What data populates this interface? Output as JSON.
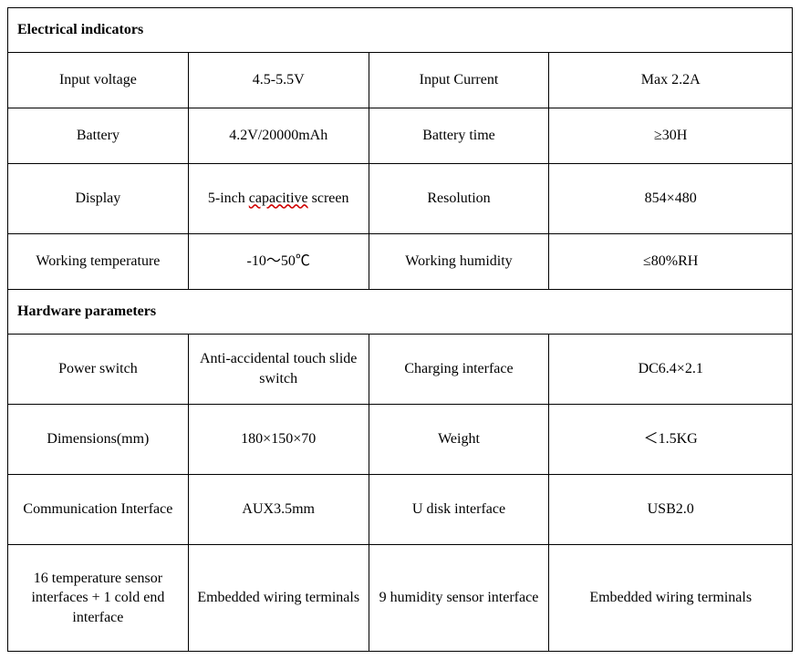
{
  "table": {
    "border_color": "#000000",
    "background_color": "#ffffff",
    "font_family": "Times New Roman",
    "base_fontsize_pt": 12,
    "column_widths_pct": [
      23,
      23,
      23,
      31
    ],
    "sections": [
      {
        "title": "Electrical indicators",
        "rows": [
          {
            "label1": "Input voltage",
            "value1": "4.5-5.5V",
            "label2": "Input Current",
            "value2": "Max 2.2A"
          },
          {
            "label1": "Battery",
            "value1": "4.2V/20000mAh",
            "label2": "Battery time",
            "value2": "≥30H"
          },
          {
            "label1": "Display",
            "value1": "5-inch capacitive screen",
            "label2": "Resolution",
            "value2": "854×480"
          },
          {
            "label1": "Working temperature",
            "value1": "-10～50℃",
            "label2": "Working humidity",
            "value2": "≤80%RH"
          }
        ]
      },
      {
        "title": "Hardware parameters",
        "rows": [
          {
            "label1": "Power switch",
            "value1": "Anti-accidental touch slide switch",
            "label2": "Charging interface",
            "value2": "DC6.4×2.1"
          },
          {
            "label1": "Dimensions(mm)",
            "value1": "180×150×70",
            "label2": "Weight",
            "value2": "＜1.5KG"
          },
          {
            "label1": "Communication Interface",
            "value1": "AUX3.5mm",
            "label2": "U disk interface",
            "value2": "USB2.0"
          },
          {
            "label1": "16 temperature sensor interfaces + 1 cold end interface",
            "value1": "Embedded wiring terminals",
            "label2": "9 humidity sensor interface",
            "value2": "Embedded wiring terminals"
          }
        ]
      }
    ],
    "highlight": {
      "section": 0,
      "row": 2,
      "col": "value1",
      "word": "capacitive",
      "style": "wavy-underline",
      "color": "#d00000"
    }
  }
}
